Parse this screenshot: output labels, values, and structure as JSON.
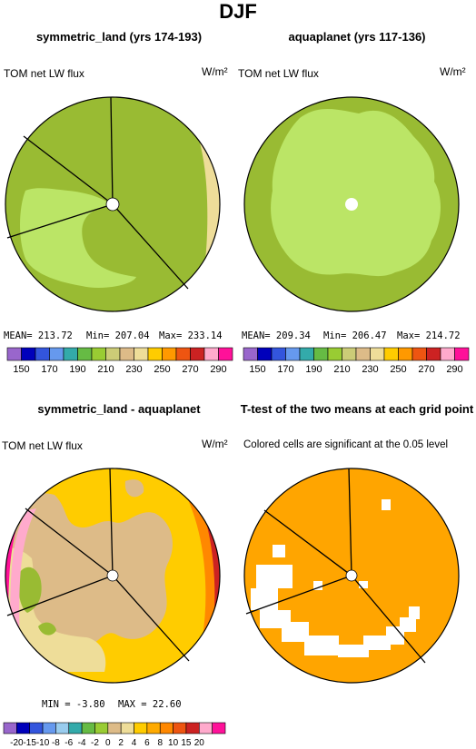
{
  "title": "DJF",
  "panels": [
    {
      "id": "p1",
      "title": "symmetric_land (yrs 174-193)",
      "left_label": "TOM net LW flux",
      "units": "W/m²"
    },
    {
      "id": "p2",
      "title": "aquaplanet (yrs 117-136)",
      "left_label": "TOM net LW flux",
      "units": "W/m²"
    },
    {
      "id": "p3",
      "title": "symmetric_land - aquaplanet",
      "left_label": "TOM net LW flux",
      "units": "W/m²"
    },
    {
      "id": "p4",
      "title": "T-test of the two means at each grid point",
      "left_label": "Colored cells are significant at the 0.05 level",
      "units": ""
    }
  ],
  "stats": {
    "p1": {
      "mean": "MEAN= 213.72",
      "min": "Min= 207.04",
      "max": "Max= 233.14"
    },
    "p2": {
      "mean": "MEAN= 209.34",
      "min": "Min= 206.47",
      "max": "Max= 214.72"
    },
    "p3": {
      "min": "MIN =  -3.80",
      "max": "MAX =  22.60"
    }
  },
  "colorbars": {
    "abs": {
      "colors": [
        "#9966cc",
        "#0000bb",
        "#3355dd",
        "#6699ee",
        "#33aaaa",
        "#66bb44",
        "#99cc33",
        "#cccc77",
        "#ddbb88",
        "#eedd99",
        "#ffcc00",
        "#ff9900",
        "#ee5511",
        "#cc2222",
        "#ffaacc",
        "#ff1199"
      ],
      "labels": [
        "150",
        "170",
        "190",
        "210",
        "230",
        "250",
        "270",
        "290"
      ]
    },
    "diff": {
      "colors": [
        "#9966cc",
        "#0000bb",
        "#3355dd",
        "#6699ee",
        "#99ccee",
        "#33aaaa",
        "#66bb44",
        "#99cc33",
        "#ddbb88",
        "#eedd99",
        "#ffcc00",
        "#ffaa00",
        "#ff8800",
        "#ee5511",
        "#cc2222",
        "#ffaacc",
        "#ff1199"
      ],
      "labels": [
        "-20",
        "-15",
        "-10",
        "-8",
        "-6",
        "-4",
        "-2",
        "0",
        "2",
        "4",
        "6",
        "8",
        "10",
        "15",
        "20"
      ]
    }
  },
  "chart_data": [
    {
      "type": "heatmap",
      "title": "symmetric_land (yrs 174-193)",
      "variable": "TOM net LW flux",
      "units": "W/m²",
      "mean": 213.72,
      "min": 207.04,
      "max": 233.14,
      "levels": [
        150,
        160,
        170,
        180,
        190,
        200,
        210,
        220,
        230,
        240,
        250,
        260,
        270,
        280,
        290
      ]
    },
    {
      "type": "heatmap",
      "title": "aquaplanet (yrs 117-136)",
      "variable": "TOM net LW flux",
      "units": "W/m²",
      "mean": 209.34,
      "min": 206.47,
      "max": 214.72,
      "levels": [
        150,
        160,
        170,
        180,
        190,
        200,
        210,
        220,
        230,
        240,
        250,
        260,
        270,
        280,
        290
      ]
    },
    {
      "type": "heatmap",
      "title": "symmetric_land - aquaplanet",
      "variable": "TOM net LW flux",
      "units": "W/m²",
      "min": -3.8,
      "max": 22.6,
      "levels": [
        -20,
        -15,
        -10,
        -8,
        -6,
        -4,
        -2,
        0,
        2,
        4,
        6,
        8,
        10,
        15,
        20
      ]
    },
    {
      "type": "heatmap",
      "title": "T-test of the two means at each grid point",
      "note": "Colored cells are significant at the 0.05 level"
    }
  ]
}
